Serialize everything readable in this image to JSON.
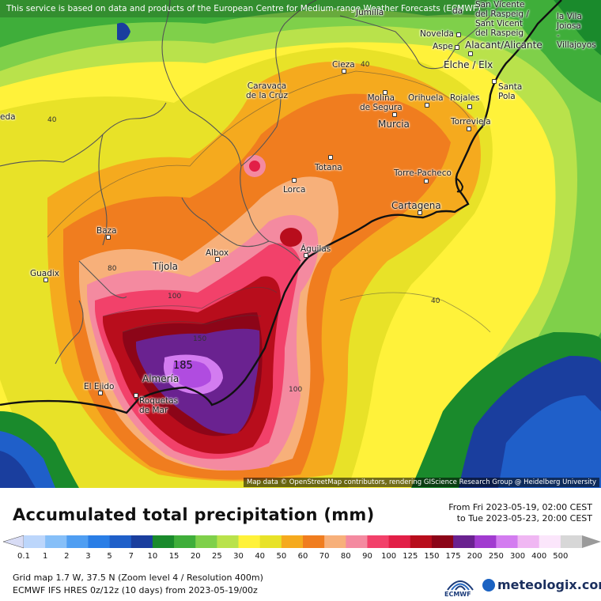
{
  "attribution_top": "This service is based on data and products of the European Centre for Medium-range Weather Forecasts (ECMWF)",
  "attribution_bottom": "Map data © OpenStreetMap contributors, rendering GIScience Research Group @ Heidelberg University",
  "places": [
    {
      "id": "jumilla",
      "label": "Jumilla"
    },
    {
      "id": "elda",
      "label": "da"
    },
    {
      "id": "sanvicente",
      "label": "San Vicente\ndel Raspeig /\nSant Vicent\ndel Raspeig"
    },
    {
      "id": "villajoyosa",
      "label": "la Vila\nJoiosa\n- Villajoyos"
    },
    {
      "id": "novelda",
      "label": "Novelda"
    },
    {
      "id": "aspe",
      "label": "Aspe"
    },
    {
      "id": "alicante",
      "label": "Alacant/Alicante"
    },
    {
      "id": "elche",
      "label": "Elche / Elx"
    },
    {
      "id": "cieza",
      "label": "Cieza"
    },
    {
      "id": "santapola",
      "label": "Santa\nPola"
    },
    {
      "id": "caravaca",
      "label": "Caravaca\nde la Cruz"
    },
    {
      "id": "molina",
      "label": "Molina\nde Segura"
    },
    {
      "id": "orihuela",
      "label": "Orihuela"
    },
    {
      "id": "rojales",
      "label": "Rojales"
    },
    {
      "id": "murcia",
      "label": "Murcia"
    },
    {
      "id": "torrevieja",
      "label": "Torrevieja"
    },
    {
      "id": "ueda",
      "label": "eda"
    },
    {
      "id": "totana",
      "label": "Totana"
    },
    {
      "id": "torrepacheco",
      "label": "Torre-Pacheco"
    },
    {
      "id": "lorca",
      "label": "Lorca"
    },
    {
      "id": "cartagena",
      "label": "Cartagena"
    },
    {
      "id": "baza",
      "label": "Baza"
    },
    {
      "id": "albox",
      "label": "Albox"
    },
    {
      "id": "aguilas",
      "label": "Águilas"
    },
    {
      "id": "tijola",
      "label": "Tíjola"
    },
    {
      "id": "guadix",
      "label": "Guadix"
    },
    {
      "id": "elejido",
      "label": "El Ejido"
    },
    {
      "id": "almeria",
      "label": "Almería"
    },
    {
      "id": "roquetas",
      "label": "Roquetas\nde Mar"
    }
  ],
  "contour_labels": [
    "40",
    "40",
    "80",
    "100",
    "150",
    "100",
    "40"
  ],
  "max_value": "185",
  "legend": {
    "title": "Accumulated total precipitation (mm)",
    "from": "From Fri 2023-05-19, 02:00 CEST",
    "to": "to Tue 2023-05-23, 20:00 CEST",
    "ticks": [
      "0.1",
      "1",
      "2",
      "3",
      "5",
      "7",
      "10",
      "15",
      "20",
      "25",
      "30",
      "40",
      "50",
      "60",
      "70",
      "80",
      "90",
      "100",
      "125",
      "150",
      "175",
      "200",
      "250",
      "300",
      "400",
      "500"
    ],
    "colors": [
      "#d8dcf5",
      "#bcd6fb",
      "#86bff8",
      "#4f9ef2",
      "#2a7ee6",
      "#1f5fc9",
      "#1a3e9e",
      "#1a8a2c",
      "#3fae3a",
      "#7fd04a",
      "#b9e24b",
      "#fff23a",
      "#e8e228",
      "#f5aa1e",
      "#f07d1f",
      "#f7b07a",
      "#f48aa0",
      "#f2416a",
      "#e21f47",
      "#b80d1c",
      "#8c0518",
      "#6a2290",
      "#a13bd0",
      "#d37cf0",
      "#f0b7f3",
      "#fbe6fb",
      "#d7d7d7",
      "#9a9a9a"
    ]
  },
  "grid_info": "Grid map 1.7 W, 37.5 N (Zoom level 4 / Resolution 400m)",
  "model_info": "ECMWF IFS HRES 0z/12z (10 days) from  2023-05-19/00z",
  "ecmwf_label": "ECMWF",
  "brand": "meteologix.com"
}
